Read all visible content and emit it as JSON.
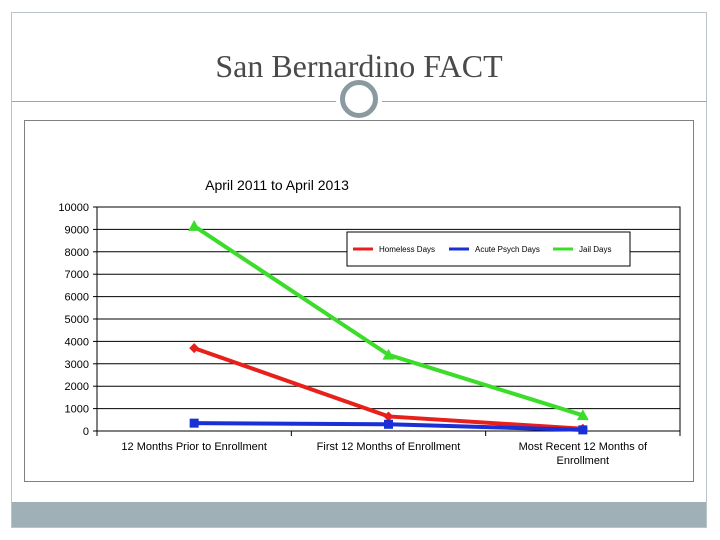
{
  "slide": {
    "title": "San Bernardino FACT"
  },
  "chart_data": {
    "type": "line",
    "title": "April 2011 to April 2013",
    "categories": [
      "12 Months Prior to Enrollment",
      "First 12 Months of Enrollment",
      "Most Recent 12 Months of Enrollment"
    ],
    "category_lines": [
      [
        "12 Months Prior to Enrollment"
      ],
      [
        "First 12 Months of Enrollment"
      ],
      [
        "Most Recent 12 Months of",
        "Enrollment"
      ]
    ],
    "ylim": [
      0,
      10000
    ],
    "yticks": [
      "0",
      "1000",
      "2000",
      "3000",
      "4000",
      "5000",
      "6000",
      "7000",
      "8000",
      "9000",
      "10000"
    ],
    "grid": true,
    "legend_position": "top-right",
    "series": [
      {
        "name": "Homeless Days",
        "values": [
          3700,
          650,
          100
        ],
        "color": "#e8201c",
        "marker": "diamond"
      },
      {
        "name": "Acute Psych Days",
        "values": [
          350,
          300,
          50
        ],
        "color": "#1a2fd6",
        "marker": "square"
      },
      {
        "name": "Jail Days",
        "values": [
          9150,
          3400,
          700
        ],
        "color": "#3bdc2a",
        "marker": "triangle"
      }
    ]
  }
}
